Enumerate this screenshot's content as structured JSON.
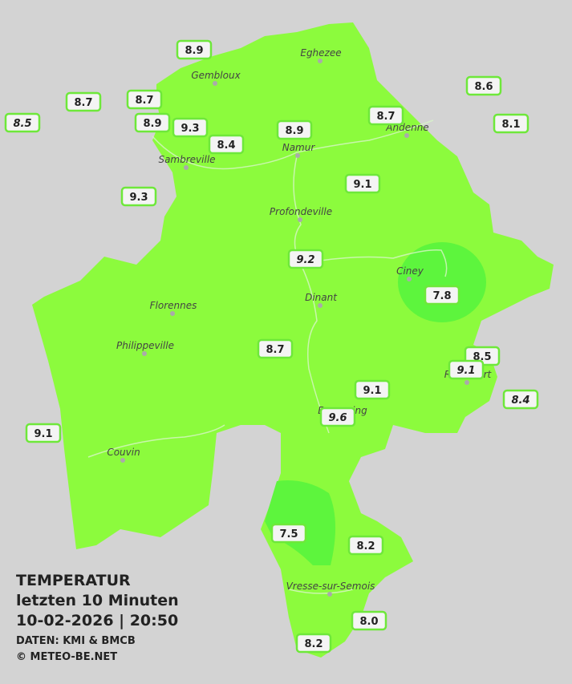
{
  "title": {
    "lines": [
      "TEMPERATUR",
      "letzten 10 Minuten",
      "10-02-2026  |  20:50"
    ],
    "credits": [
      "DATEN: KMI & BMCB",
      "© METEO-BE.NET"
    ]
  },
  "cities": [
    "Eghezee",
    "Gembloux",
    "Andenne",
    "Namur",
    "Sambreville",
    "Profondeville",
    "Ciney",
    "Dinant",
    "Florennes",
    "Philippeville",
    "Rochefort",
    "Beauraing",
    "Couvin",
    "Vresse-sur-Semois"
  ],
  "stations": [
    "8.9",
    "8.7",
    "8.7",
    "8.5",
    "8.9",
    "9.3",
    "8.4",
    "8.9",
    "8.7",
    "8.6",
    "8.1",
    "9.3",
    "9.1",
    "9.2",
    "7.8",
    "8.7",
    "8.5",
    "9.1",
    "8.4",
    "9.1",
    "9.6",
    "9.1",
    "7.5",
    "8.2",
    "8.0",
    "8.2"
  ]
}
